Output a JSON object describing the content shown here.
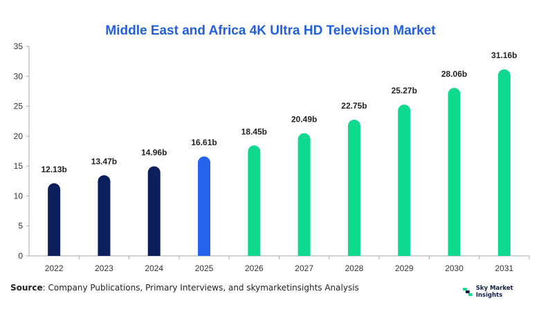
{
  "chart_data": {
    "type": "bar",
    "title": "Middle East and Africa 4K Ultra HD Television Market",
    "xlabel": "",
    "ylabel": "",
    "categories": [
      "2022",
      "2023",
      "2024",
      "2025",
      "2026",
      "2027",
      "2028",
      "2029",
      "2030",
      "2031"
    ],
    "values": [
      12.13,
      13.47,
      14.96,
      16.61,
      18.45,
      20.49,
      22.75,
      25.27,
      28.06,
      31.16
    ],
    "value_labels": [
      "12.13b",
      "13.47b",
      "14.96b",
      "16.61b",
      "18.45b",
      "20.49b",
      "22.75b",
      "25.27b",
      "28.06b",
      "31.16b"
    ],
    "ylim": [
      0,
      35
    ],
    "yticks": [
      0,
      5,
      10,
      15,
      20,
      25,
      30,
      35
    ],
    "grid": false,
    "legend": "none",
    "bar_colors": [
      "#0b1f5c",
      "#0b1f5c",
      "#0b1f5c",
      "#2563eb",
      "#0fd98e",
      "#0fd98e",
      "#0fd98e",
      "#0fd98e",
      "#0fd98e",
      "#0fd98e"
    ]
  },
  "footer": {
    "source_label": "Source",
    "source_text": ": Company Publications, Primary Interviews, and skymarketinsights Analysis",
    "brand": "Sky Market Insights"
  },
  "colors": {
    "title": "#1f5fe0",
    "axis": "#aaaaaa",
    "brand_icon": "#0fd98e",
    "brand_text": "#0e1d4a"
  },
  "icons": {
    "brand_logo": "sky-market-insights-logo-icon"
  }
}
